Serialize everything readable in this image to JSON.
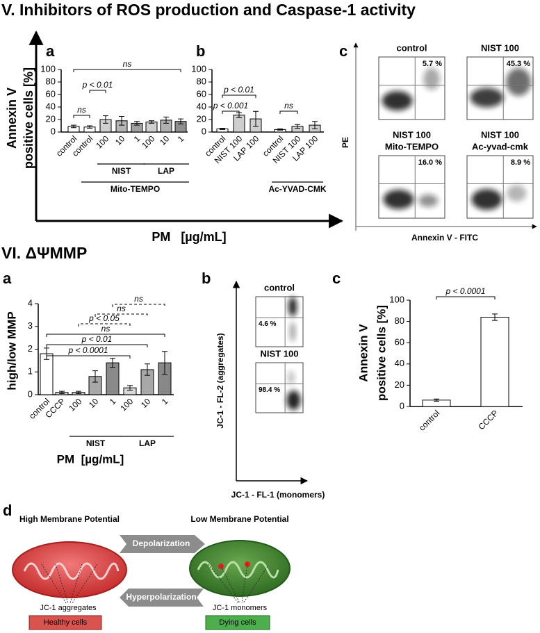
{
  "section_titles": [
    "V. Inhibitors of ROS production and Caspase-1 activity",
    "VI. ΔΨMMP"
  ],
  "panel_letters": [
    "a",
    "b",
    "c",
    "a",
    "b",
    "c",
    "d"
  ],
  "chart_data": [
    {
      "type": "bar",
      "y_label": [
        "Annexin V",
        "positive cells [%]"
      ],
      "x_label": "PM   [µg/mL]",
      "categories": [
        "control",
        "control",
        "100",
        "10",
        "1",
        "100",
        "10",
        "1"
      ],
      "values": [
        9,
        8,
        20,
        18,
        14,
        16,
        19,
        17
      ],
      "errors": [
        2,
        2,
        6,
        7,
        3,
        2,
        5,
        4
      ],
      "colors": [
        "#ffffff",
        "#ffffff",
        "#cfcfcf",
        "#b5b5b5",
        "#a0a0a0",
        "#cfcfcf",
        "#b0b0b0",
        "#8f8f8f"
      ],
      "ylim": [
        0,
        100
      ],
      "yticks": [
        0,
        20,
        40,
        60,
        80,
        100
      ],
      "groups": [
        {
          "label": "NIST",
          "span": [
            2,
            4
          ]
        },
        {
          "label": "LAP",
          "span": [
            5,
            7
          ]
        },
        {
          "label": "Mito-TEMPO",
          "span": [
            1,
            7
          ]
        }
      ],
      "annotations": [
        {
          "label": "ns",
          "span": [
            0,
            1
          ],
          "dashed": false
        },
        {
          "label": "p < 0.01",
          "span": [
            1,
            2
          ],
          "dashed": false
        },
        {
          "label": "ns",
          "span": [
            0,
            7
          ],
          "dashed": false
        }
      ]
    },
    {
      "type": "bar",
      "categories": [
        "control",
        "NIST 100",
        "LAP 100",
        "control",
        "NIST 100",
        "LAP 100"
      ],
      "values": [
        5,
        27,
        21,
        4,
        9,
        11
      ],
      "errors": [
        1,
        4,
        12,
        1,
        3,
        6
      ],
      "colors": [
        "#ffffff",
        "#cfcfcf",
        "#cfcfcf",
        "#ffffff",
        "#cfcfcf",
        "#cfcfcf"
      ],
      "ylim": [
        0,
        100
      ],
      "yticks": [
        0,
        20,
        40,
        60,
        80,
        100
      ],
      "groups": [
        {
          "label": "Ac-YVAD-CMK",
          "span": [
            3,
            5
          ]
        }
      ],
      "annotations": [
        {
          "label": "p < 0.001",
          "span": [
            0,
            1
          ],
          "dashed": false
        },
        {
          "label": "p < 0.01",
          "span": [
            0,
            2
          ],
          "dashed": false
        },
        {
          "label": "ns",
          "span": [
            3,
            4
          ],
          "dashed": false
        }
      ]
    },
    {
      "type": "bar",
      "y_label": [
        "high/low MMP"
      ],
      "x_label": "PM  [µg/mL]",
      "categories": [
        "control",
        "CCCP",
        "100",
        "10",
        "1",
        "100",
        "10",
        "1"
      ],
      "values": [
        1.8,
        0.1,
        0.1,
        0.8,
        1.4,
        0.3,
        1.1,
        1.4
      ],
      "errors": [
        0.25,
        0.05,
        0.05,
        0.25,
        0.2,
        0.1,
        0.25,
        0.5
      ],
      "colors": [
        "#ffffff",
        "#e0e0e0",
        "#d0d0d0",
        "#a8a8a8",
        "#8a8a8a",
        "#d8d8d8",
        "#a8a8a8",
        "#888888"
      ],
      "ylim": [
        0,
        4
      ],
      "yticks": [
        0,
        1,
        2,
        3,
        4
      ],
      "groups": [
        {
          "label": "NIST",
          "span": [
            2,
            4
          ]
        },
        {
          "label": "LAP",
          "span": [
            5,
            7
          ]
        }
      ],
      "annotations": [
        {
          "label": "p < 0.0001",
          "span": [
            0,
            5
          ],
          "dashed": false
        },
        {
          "label": "p < 0.01",
          "span": [
            0,
            6
          ],
          "dashed": false
        },
        {
          "label": "ns",
          "span": [
            0,
            7
          ],
          "dashed": false
        },
        {
          "label": "p < 0.05",
          "span": [
            2,
            5
          ],
          "dashed": true
        },
        {
          "label": "ns",
          "span": [
            3,
            6
          ],
          "dashed": true
        },
        {
          "label": "ns",
          "span": [
            4,
            7
          ],
          "dashed": true
        }
      ]
    },
    {
      "type": "bar",
      "y_label": [
        "Annexin V",
        "positive cells [%]"
      ],
      "categories": [
        "control",
        "CCCP"
      ],
      "values": [
        6,
        84
      ],
      "errors": [
        1,
        3
      ],
      "colors": [
        "#ffffff",
        "#ffffff"
      ],
      "ylim": [
        0,
        100
      ],
      "yticks": [
        0,
        20,
        40,
        60,
        80,
        100
      ],
      "groups": [],
      "annotations": [
        {
          "label": "p < 0.0001",
          "span": [
            0,
            1
          ],
          "dashed": false
        }
      ]
    }
  ],
  "flow_cytometry": [
    {
      "x_label": "Annexin V - FITC",
      "y_label": "PE",
      "plots": [
        {
          "title": [
            "control"
          ],
          "percent": "5.7 %"
        },
        {
          "title": [
            "NIST 100"
          ],
          "percent": "45.3 %"
        },
        {
          "title": [
            "NIST 100",
            "Mito-TEMPO"
          ],
          "percent": "16.0 %"
        },
        {
          "title": [
            "NIST 100",
            "Ac-yvad-cmk"
          ],
          "percent": "8.9 %"
        }
      ]
    },
    {
      "x_label": "JC-1 - FL-1 (monomers)",
      "y_label": "JC-1 - FL-2 (aggregates)",
      "plots": [
        {
          "title": [
            "control"
          ],
          "percent": "4.6 %"
        },
        {
          "title": [
            "NIST 100"
          ],
          "percent": "98.4 %"
        }
      ]
    }
  ],
  "diagram": {
    "left_title": "High Membrane Potential",
    "right_title": "Low Membrane Potential",
    "top_arrow": "Depolarization",
    "bottom_arrow": "Hyperpolarization",
    "left_label": "JC-1 aggregates",
    "right_label": "JC-1 monomers",
    "left_state": "Healthy cells",
    "right_state": "Dying cells"
  }
}
